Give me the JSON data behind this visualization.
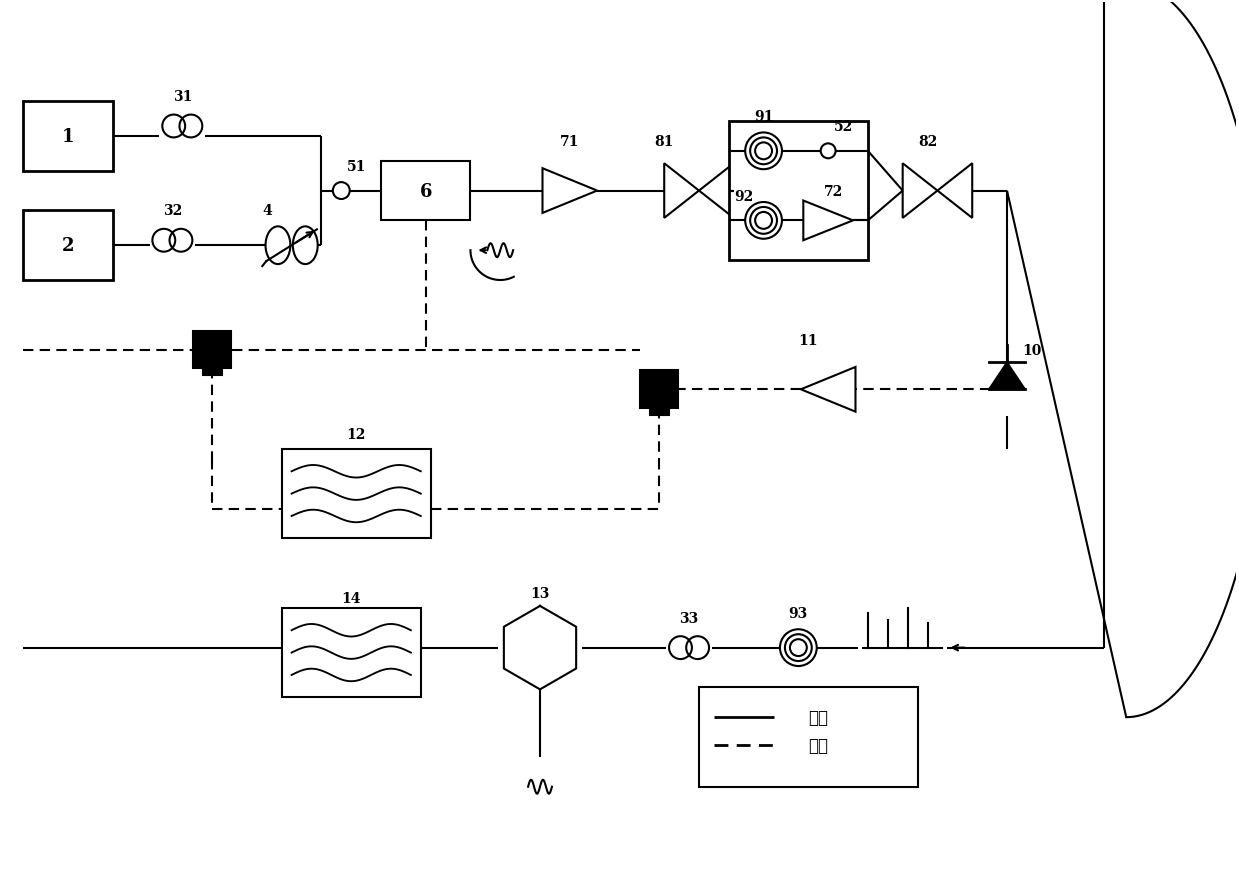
{
  "bg_color": "#ffffff",
  "line_color": "#000000",
  "figsize": [
    12.39,
    8.7
  ],
  "dpi": 100
}
